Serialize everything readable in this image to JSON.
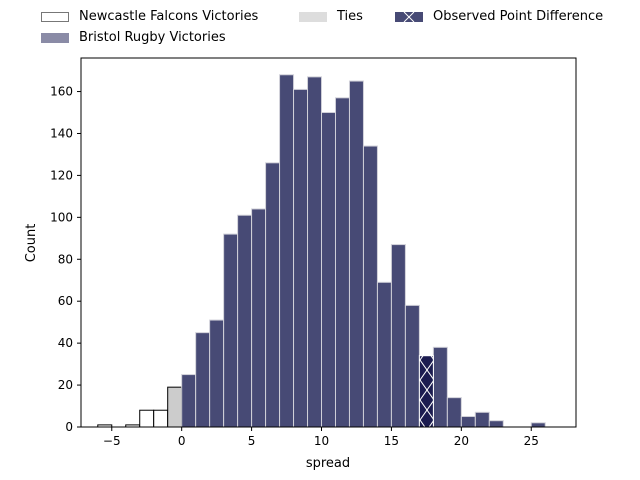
{
  "chart_data": {
    "type": "bar",
    "xlabel": "spread",
    "ylabel": "Count",
    "xlim": [
      -7.2,
      28.2
    ],
    "ylim": [
      0,
      176
    ],
    "xticks": [
      -5,
      0,
      5,
      10,
      15,
      20,
      25
    ],
    "yticks": [
      0,
      20,
      40,
      60,
      80,
      100,
      120,
      140,
      160
    ],
    "bin_width": 1,
    "legend": {
      "placement": "top",
      "entries": [
        {
          "label": "Newcastle Falcons Victories",
          "swatch": "newcastle"
        },
        {
          "label": "Bristol Rugby Victories",
          "swatch": "bristol"
        },
        {
          "label": "Ties",
          "swatch": "ties"
        },
        {
          "label": "Observed Point Difference",
          "swatch": "observed"
        }
      ]
    },
    "series": [
      {
        "name": "Newcastle Falcons Victories",
        "color": "#ffffff",
        "edge": "#000000",
        "bins": [
          {
            "x0": -6,
            "value": 1
          },
          {
            "x0": -4,
            "value": 1
          },
          {
            "x0": -3,
            "value": 8
          },
          {
            "x0": -2,
            "value": 8
          }
        ]
      },
      {
        "name": "Ties",
        "color": "#cccccc",
        "edge": "#000000",
        "bins": [
          {
            "x0": -1,
            "value": 19
          }
        ]
      },
      {
        "name": "Bristol Rugby Victories",
        "color": "#474a75",
        "edge": "#d0d0d8",
        "bins": [
          {
            "x0": 0,
            "value": 25
          },
          {
            "x0": 1,
            "value": 45
          },
          {
            "x0": 2,
            "value": 51
          },
          {
            "x0": 3,
            "value": 92
          },
          {
            "x0": 4,
            "value": 101
          },
          {
            "x0": 5,
            "value": 104
          },
          {
            "x0": 6,
            "value": 126
          },
          {
            "x0": 7,
            "value": 168
          },
          {
            "x0": 8,
            "value": 161
          },
          {
            "x0": 9,
            "value": 167
          },
          {
            "x0": 10,
            "value": 150
          },
          {
            "x0": 11,
            "value": 157
          },
          {
            "x0": 12,
            "value": 165
          },
          {
            "x0": 13,
            "value": 134
          },
          {
            "x0": 14,
            "value": 69
          },
          {
            "x0": 15,
            "value": 87
          },
          {
            "x0": 16,
            "value": 58
          },
          {
            "x0": 18,
            "value": 38
          },
          {
            "x0": 19,
            "value": 14
          },
          {
            "x0": 20,
            "value": 5
          },
          {
            "x0": 21,
            "value": 7
          },
          {
            "x0": 22,
            "value": 3
          },
          {
            "x0": 25,
            "value": 2
          }
        ]
      },
      {
        "name": "Observed Point Difference",
        "color": "#1c1c50",
        "edge": "#ffffff",
        "bins": [
          {
            "x0": 17,
            "value": 34
          }
        ]
      }
    ]
  }
}
